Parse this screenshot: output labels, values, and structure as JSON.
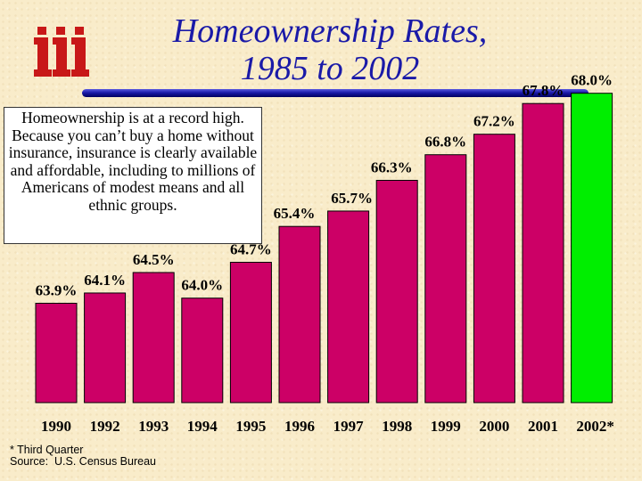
{
  "title": {
    "line1": "Homeownership Rates,",
    "line2": "1985 to 2002"
  },
  "callout_text": "Homeownership is at a record high. Because you can’t buy a home without insurance, insurance is clearly available and affordable, including to millions of Americans of modest means and all ethnic groups.",
  "footnote": {
    "line1": "* Third Quarter",
    "line2": "Source:  U.S. Census Bureau"
  },
  "colors": {
    "bar": "#cc0066",
    "highlight_bar": "#00ee00",
    "title": "#1a1aa8",
    "logo": "#c81818"
  },
  "logo_icon": "iii-logo-icon",
  "chart_data": {
    "type": "bar",
    "categories": [
      "1990",
      "1992",
      "1993",
      "1994",
      "1995",
      "1996",
      "1997",
      "1998",
      "1999",
      "2000",
      "2001",
      "2002*"
    ],
    "values": [
      63.9,
      64.1,
      64.5,
      64.0,
      64.7,
      65.4,
      65.7,
      66.3,
      66.8,
      67.2,
      67.8,
      68.0
    ],
    "value_labels": [
      "63.9%",
      "64.1%",
      "64.5%",
      "64.0%",
      "64.7%",
      "65.4%",
      "65.7%",
      "66.3%",
      "66.8%",
      "67.2%",
      "67.8%",
      "68.0%"
    ],
    "highlight_index": 11,
    "xlabel": "",
    "ylabel": "",
    "grid": false
  }
}
